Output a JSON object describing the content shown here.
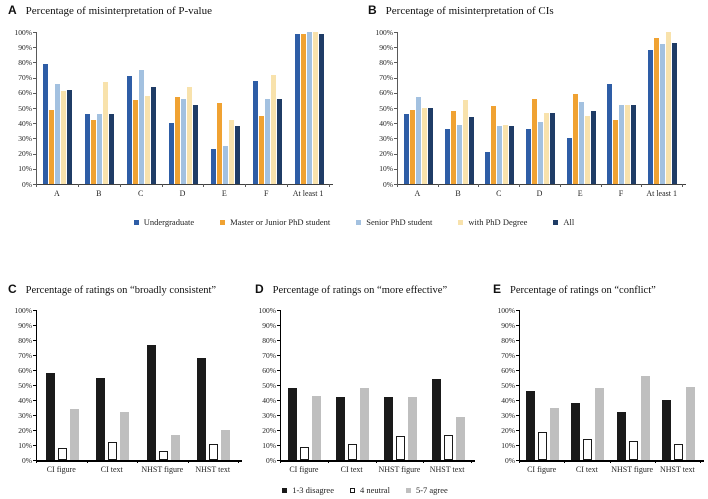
{
  "figure": {
    "top_legend": {
      "items": [
        {
          "label": "Undergraduate",
          "color": "#2e5da6"
        },
        {
          "label": "Master or Junior PhD student",
          "color": "#f0a232"
        },
        {
          "label": "Senior PhD student",
          "color": "#a3c1e0"
        },
        {
          "label": "with PhD Degree",
          "color": "#f8e2ac"
        },
        {
          "label": "All",
          "color": "#1f3c66"
        }
      ]
    },
    "bottom_legend": {
      "items": [
        {
          "label": "1-3 disagree",
          "color": "#1a1a1a"
        },
        {
          "label": "4 neutral",
          "color": "#ffffff",
          "border": "#1a1a1a"
        },
        {
          "label": "5-7 agree",
          "color": "#bfbfbf"
        }
      ]
    }
  },
  "chart_data": [
    {
      "type": "bar",
      "panel_letter": "A",
      "title": "Percentage of misinterpretation of P-value",
      "categories": [
        "A",
        "B",
        "C",
        "D",
        "E",
        "F",
        "At least 1"
      ],
      "series": [
        {
          "name": "Undergraduate",
          "color": "#2e5da6",
          "values": [
            79,
            46,
            71,
            40,
            23,
            68,
            99
          ]
        },
        {
          "name": "Master or Junior PhD student",
          "color": "#f0a232",
          "values": [
            49,
            42,
            55,
            57,
            53,
            45,
            99
          ]
        },
        {
          "name": "Senior PhD student",
          "color": "#a3c1e0",
          "values": [
            66,
            46,
            75,
            56,
            25,
            56,
            100
          ]
        },
        {
          "name": "with PhD Degree",
          "color": "#f8e2ac",
          "values": [
            61,
            67,
            58,
            64,
            42,
            72,
            100
          ]
        },
        {
          "name": "All",
          "color": "#1f3c66",
          "values": [
            62,
            46,
            64,
            52,
            38,
            56,
            99
          ]
        }
      ],
      "ylim": [
        0,
        100
      ],
      "ytick_step": 10,
      "ytick_suffix": "%",
      "grid": false,
      "legend_position": "shared-below-top-row"
    },
    {
      "type": "bar",
      "panel_letter": "B",
      "title": "Percentage of misinterpretation of CIs",
      "categories": [
        "A",
        "B",
        "C",
        "D",
        "E",
        "F",
        "At least 1"
      ],
      "series": [
        {
          "name": "Undergraduate",
          "color": "#2e5da6",
          "values": [
            46,
            36,
            21,
            36,
            30,
            66,
            88
          ]
        },
        {
          "name": "Master or Junior PhD student",
          "color": "#f0a232",
          "values": [
            49,
            48,
            51,
            56,
            59,
            42,
            96
          ]
        },
        {
          "name": "Senior PhD student",
          "color": "#a3c1e0",
          "values": [
            57,
            39,
            38,
            41,
            54,
            52,
            92
          ]
        },
        {
          "name": "with PhD Degree",
          "color": "#f8e2ac",
          "values": [
            50,
            55,
            39,
            47,
            45,
            52,
            100
          ]
        },
        {
          "name": "All",
          "color": "#1f3c66",
          "values": [
            50,
            44,
            38,
            47,
            48,
            52,
            93
          ]
        }
      ],
      "ylim": [
        0,
        100
      ],
      "ytick_step": 10,
      "ytick_suffix": "%",
      "grid": false,
      "legend_position": "shared-below-top-row"
    },
    {
      "type": "bar",
      "panel_letter": "C",
      "title": "Percentage of ratings on “broadly consistent”",
      "categories": [
        "CI figure",
        "CI text",
        "NHST figure",
        "NHST text"
      ],
      "series": [
        {
          "name": "1-3 disagree",
          "color": "#1a1a1a",
          "values": [
            58,
            55,
            77,
            68
          ]
        },
        {
          "name": "4 neutral",
          "color": "#ffffff",
          "border": "#1a1a1a",
          "values": [
            8,
            12,
            6,
            11
          ]
        },
        {
          "name": "5-7 agree",
          "color": "#bfbfbf",
          "values": [
            34,
            32,
            17,
            20
          ]
        }
      ],
      "ylim": [
        0,
        100
      ],
      "ytick_step": 10,
      "ytick_suffix": "%",
      "grid": false,
      "legend_position": "shared-below-bottom-row"
    },
    {
      "type": "bar",
      "panel_letter": "D",
      "title": "Percentage of ratings on “more effective”",
      "categories": [
        "CI figure",
        "CI text",
        "NHST figure",
        "NHST text"
      ],
      "series": [
        {
          "name": "1-3 disagree",
          "color": "#1a1a1a",
          "values": [
            48,
            42,
            42,
            54
          ]
        },
        {
          "name": "4 neutral",
          "color": "#ffffff",
          "border": "#1a1a1a",
          "values": [
            9,
            11,
            16,
            17
          ]
        },
        {
          "name": "5-7 agree",
          "color": "#bfbfbf",
          "values": [
            43,
            48,
            42,
            29
          ]
        }
      ],
      "ylim": [
        0,
        100
      ],
      "ytick_step": 10,
      "ytick_suffix": "%",
      "grid": false,
      "legend_position": "shared-below-bottom-row"
    },
    {
      "type": "bar",
      "panel_letter": "E",
      "title": "Percentage of ratings on “conflict”",
      "categories": [
        "CI figure",
        "CI text",
        "NHST figure",
        "NHST text"
      ],
      "series": [
        {
          "name": "1-3 disagree",
          "color": "#1a1a1a",
          "values": [
            46,
            38,
            32,
            40
          ]
        },
        {
          "name": "4 neutral",
          "color": "#ffffff",
          "border": "#1a1a1a",
          "values": [
            19,
            14,
            13,
            11
          ]
        },
        {
          "name": "5-7 agree",
          "color": "#bfbfbf",
          "values": [
            35,
            48,
            56,
            49
          ]
        }
      ],
      "ylim": [
        0,
        100
      ],
      "ytick_step": 10,
      "ytick_suffix": "%",
      "grid": false,
      "legend_position": "shared-below-bottom-row"
    }
  ]
}
